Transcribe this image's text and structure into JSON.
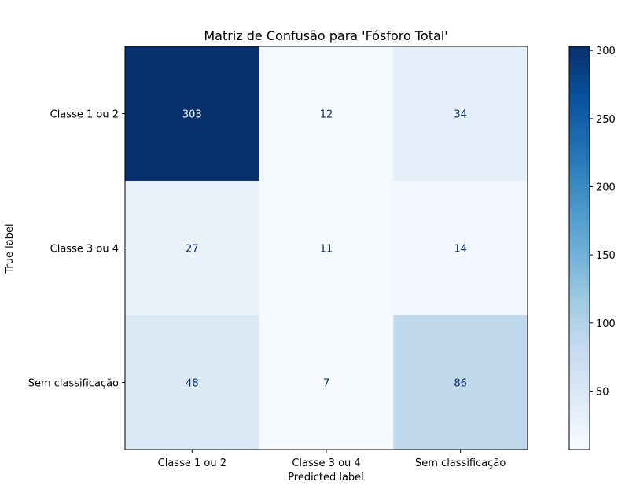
{
  "chart_data": {
    "type": "heatmap",
    "title": "Matriz de Confusão para 'Fósforo Total'",
    "xlabel": "Predicted label",
    "ylabel": "True label",
    "x_categories": [
      "Classe 1 ou 2",
      "Classe 3 ou 4",
      "Sem classificação"
    ],
    "y_categories": [
      "Classe 1 ou 2",
      "Classe 3 ou 4",
      "Sem classificação"
    ],
    "values": [
      [
        303,
        12,
        34
      ],
      [
        27,
        11,
        14
      ],
      [
        48,
        7,
        86
      ]
    ],
    "colormap": "Blues",
    "colorbar": {
      "min": 7,
      "max": 303,
      "ticks": [
        50,
        100,
        150,
        200,
        250,
        300
      ]
    }
  }
}
